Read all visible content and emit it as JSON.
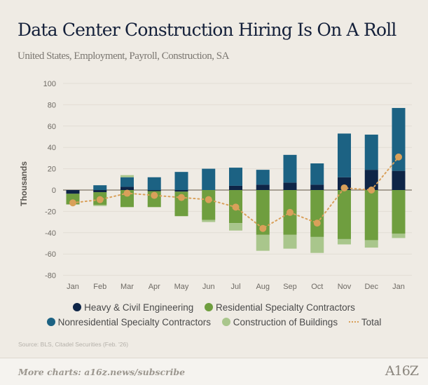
{
  "title": "Data Center Construction Hiring Is On A Roll",
  "subtitle": "United States, Employment, Payroll, Construction, SA",
  "source": "Source: BLS, Citadel Securities (Feb. '26)",
  "footer": {
    "more": "More charts: a16z.news/subscribe",
    "logo": "A16Z"
  },
  "chart_data": {
    "type": "bar",
    "stacked": true,
    "ylabel": "Thousands",
    "ylim": [
      -80,
      100
    ],
    "yticks": [
      100,
      80,
      60,
      40,
      20,
      0,
      -20,
      -40,
      -60,
      -80
    ],
    "grid": true,
    "legend_position": "bottom",
    "categories": [
      "Jan",
      "Feb",
      "Mar",
      "Apr",
      "May",
      "Jun",
      "Jul",
      "Aug",
      "Sep",
      "Oct",
      "Nov",
      "Dec",
      "Jan"
    ],
    "series": [
      {
        "name": "Heavy & Civil Engineering",
        "color": "#0e2547",
        "values": [
          -3.5,
          -2,
          3,
          -1,
          -1.5,
          0,
          4,
          5,
          7,
          5,
          12,
          19,
          18
        ]
      },
      {
        "name": "Nonresidential Specialty Contractors",
        "color": "#1c6283",
        "values": [
          0,
          4.5,
          9,
          12,
          17,
          20,
          17,
          14,
          26,
          20,
          41,
          33,
          59
        ]
      },
      {
        "name": "Residential Specialty Contractors",
        "color": "#6f9e3f",
        "values": [
          -10,
          -12,
          -16,
          -15,
          -23,
          -28,
          -31,
          -42,
          -42,
          -44,
          -46,
          -47,
          -41
        ]
      },
      {
        "name": "Construction of Buildings",
        "color": "#a9c68c",
        "values": [
          0,
          -1,
          2,
          0,
          0,
          -2,
          -7,
          -15,
          -13,
          -15,
          -5,
          -7,
          -4
        ]
      }
    ],
    "total": {
      "name": "Total",
      "color": "#d9a05a",
      "values": [
        -12,
        -9,
        -3,
        -5,
        -7,
        -9,
        -16,
        -36,
        -21,
        -31,
        2,
        0,
        31
      ]
    }
  }
}
